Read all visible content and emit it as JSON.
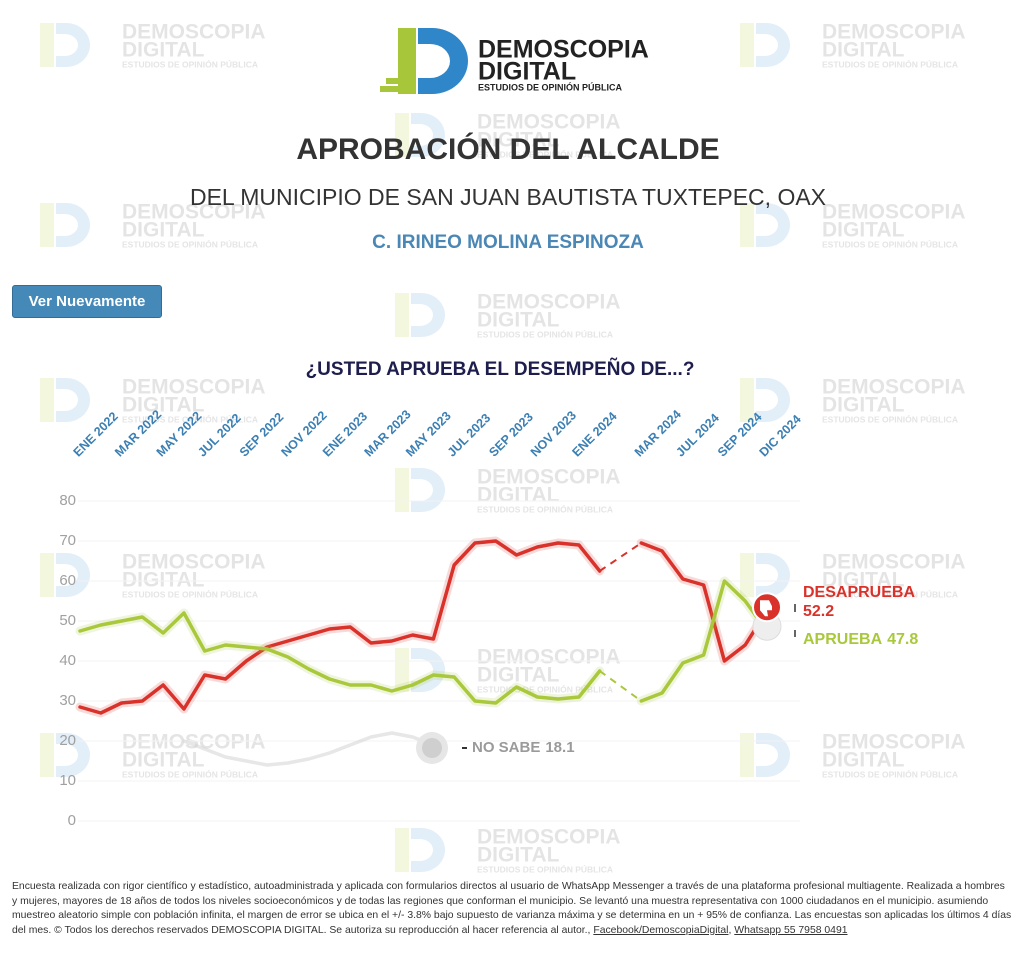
{
  "logo": {
    "line1": "DEMOSCOPIA",
    "line2": "DIGITAL",
    "tagline": "ESTUDIOS DE OPINIÓN PÚBLICA"
  },
  "header": {
    "title": "APROBACIÓN DEL ALCALDE",
    "subtitle": "DEL MUNICIPIO DE SAN JUAN BAUTISTA TUXTEPEC, OAX",
    "person": "C. IRINEO MOLINA ESPINOZA"
  },
  "button": "Ver Nuevamente",
  "chart_data": {
    "type": "line",
    "title": "¿USTED APRUEBA EL DESEMPEÑO DE...?",
    "categories": [
      "ENE 2022",
      null,
      "MAR 2022",
      null,
      "MAY 2022",
      null,
      "JUL 2022",
      null,
      "SEP 2022",
      null,
      "NOV 2022",
      null,
      "ENE 2023",
      null,
      "MAR 2023",
      null,
      "MAY 2023",
      null,
      "JUL 2023",
      null,
      "SEP 2023",
      null,
      "NOV 2023",
      null,
      "ENE 2024",
      null,
      null,
      "MAR 2024",
      null,
      "JUL 2024",
      null,
      "SEP 2024",
      null,
      "DIC 2024"
    ],
    "series": [
      {
        "name": "DESAPRUEBA",
        "color": "#d9322b",
        "values": [
          28.5,
          27,
          29.5,
          30,
          34,
          28,
          36.5,
          35.5,
          40,
          43.5,
          45,
          46.5,
          48,
          48.5,
          44.5,
          45,
          46.5,
          45.5,
          64,
          69.5,
          70,
          66.5,
          68.5,
          69.5,
          69,
          62.5,
          null,
          69.5,
          67.5,
          60.5,
          59,
          40,
          44,
          52.2
        ]
      },
      {
        "name": "APRUEBA",
        "color": "#a9c83b",
        "values": [
          47.5,
          49,
          50,
          51,
          47,
          52,
          42.5,
          44,
          43.5,
          43,
          41,
          38,
          35.5,
          34,
          34,
          32.5,
          34,
          36.5,
          36,
          30,
          29.5,
          33.5,
          31,
          30.5,
          31,
          37.5,
          null,
          30,
          32,
          39.5,
          41.5,
          60,
          55,
          47.8
        ]
      },
      {
        "name": "NO SABE",
        "color": "#cfcfcf",
        "values": [
          null,
          null,
          null,
          null,
          null,
          20,
          18,
          16,
          15,
          14,
          14.5,
          15.5,
          17,
          19,
          21,
          22,
          21,
          19,
          null,
          null,
          null,
          null,
          null,
          null,
          null,
          null,
          null,
          null,
          null,
          null,
          null,
          null,
          null,
          18.1
        ]
      }
    ],
    "ylim": [
      0,
      80
    ],
    "yticks": [
      0,
      10,
      20,
      30,
      40,
      50,
      60,
      70,
      80
    ],
    "grid": true
  },
  "note": {
    "text": "Encuesta realizada con rigor científico y estadístico, autoadministrada y aplicada con formularios directos al usuario de WhatsApp Messenger a través de una plataforma profesional multiagente. Realizada a hombres y mujeres, mayores de 18 años de todos los niveles socioeconómicos y de todas las regiones que conforman el municipio. Se levantó una muestra representativa con 1000 ciudadanos en el municipio. asumiendo muestreo aleatorio simple con población infinita, el margen de error se ubica en el +/- 3.8% bajo supuesto de varianza máxima y se determina en un + 95% de confianza. Las encuestas son aplicadas los últimos 4 días del mes. © Todos los derechos reservados DEMOSCOPIA DIGITAL. Se autoriza su reproducción al hacer referencia al autor.,",
    "links": [
      "Facebook/DemoscopiaDigital",
      "Whatsapp 55 7958 0491"
    ],
    "separator": ","
  }
}
